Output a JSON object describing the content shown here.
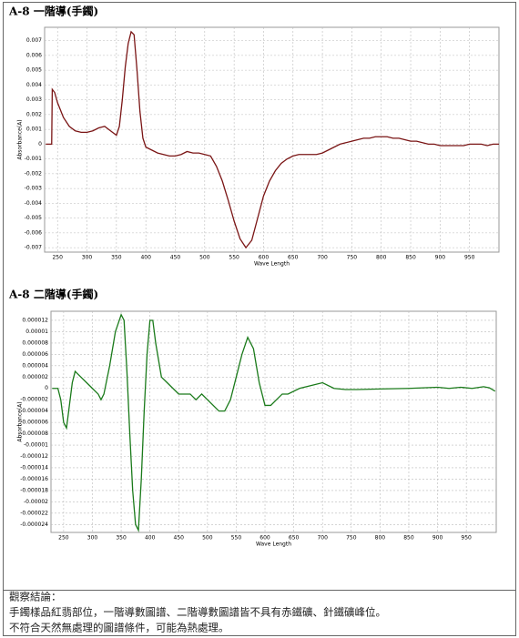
{
  "chart_data": [
    {
      "type": "line",
      "title": "A-8 一階導(手鐲)",
      "x_label": "Wave Length",
      "y_label": "Absorbance(A)",
      "xlim": [
        228,
        1000
      ],
      "xticks": [
        250,
        300,
        350,
        400,
        450,
        500,
        550,
        600,
        650,
        700,
        750,
        800,
        850,
        900,
        950
      ],
      "ylim": [
        -0.0073,
        0.0079
      ],
      "yticks": [
        0.007,
        0.006,
        0.005,
        0.004,
        0.003,
        0.002,
        0.001,
        0,
        -0.001,
        -0.002,
        -0.003,
        -0.004,
        -0.005,
        -0.006,
        -0.007
      ],
      "grid": true,
      "color": "#7a1515",
      "x": [
        230,
        240,
        241,
        245,
        250,
        260,
        270,
        280,
        290,
        300,
        310,
        320,
        330,
        340,
        350,
        355,
        360,
        365,
        370,
        375,
        380,
        385,
        390,
        395,
        400,
        410,
        420,
        430,
        440,
        450,
        460,
        470,
        480,
        490,
        500,
        510,
        520,
        530,
        540,
        550,
        560,
        570,
        580,
        590,
        600,
        610,
        620,
        630,
        640,
        650,
        660,
        670,
        680,
        690,
        700,
        710,
        720,
        730,
        740,
        750,
        760,
        770,
        780,
        790,
        800,
        810,
        820,
        830,
        840,
        850,
        860,
        870,
        880,
        890,
        900,
        910,
        920,
        930,
        940,
        950,
        960,
        970,
        980,
        990,
        1000
      ],
      "values": [
        0,
        0,
        0.0037,
        0.0035,
        0.0028,
        0.0018,
        0.0012,
        0.0009,
        0.0008,
        0.0008,
        0.0009,
        0.0011,
        0.0012,
        0.0009,
        0.0006,
        0.0012,
        0.003,
        0.0052,
        0.0068,
        0.0076,
        0.0074,
        0.005,
        0.0022,
        0.0004,
        -0.0002,
        -0.0004,
        -0.0006,
        -0.0007,
        -0.0008,
        -0.0008,
        -0.0007,
        -0.0005,
        -0.0006,
        -0.0006,
        -0.0007,
        -0.0008,
        -0.0015,
        -0.0025,
        -0.0038,
        -0.0052,
        -0.0064,
        -0.007,
        -0.0065,
        -0.005,
        -0.0035,
        -0.0025,
        -0.0018,
        -0.0013,
        -0.001,
        -0.0008,
        -0.0007,
        -0.0007,
        -0.0007,
        -0.0007,
        -0.0006,
        -0.0004,
        -0.0002,
        0,
        0.0001,
        0.0002,
        0.0003,
        0.0004,
        0.0004,
        0.0005,
        0.0005,
        0.0005,
        0.0004,
        0.0004,
        0.0003,
        0.0002,
        0.0002,
        0.0001,
        0,
        0,
        -0.0001,
        -0.0001,
        -0.0001,
        -0.0001,
        -0.0001,
        0,
        0,
        0,
        -0.0001,
        0,
        0
      ]
    },
    {
      "type": "line",
      "title": "A-8 二階導(手鐲)",
      "x_label": "Wave Length",
      "y_label": "Absorbance(A)",
      "xlim": [
        228,
        1002
      ],
      "xticks": [
        250,
        300,
        350,
        400,
        450,
        500,
        550,
        600,
        650,
        700,
        750,
        800,
        850,
        900,
        950
      ],
      "ylim": [
        -2.54e-05,
        1.36e-05
      ],
      "yticks": [
        1.2e-05,
        1e-05,
        8e-06,
        6e-06,
        4e-06,
        2e-06,
        0,
        -2e-06,
        -4e-06,
        -6e-06,
        -8e-06,
        -1e-05,
        -1.2e-05,
        -1.4e-05,
        -1.6e-05,
        -1.8e-05,
        -2e-05,
        -2.2e-05,
        -2.4e-05
      ],
      "grid": true,
      "color": "#1a7a1a",
      "x": [
        230,
        240,
        245,
        250,
        255,
        260,
        265,
        270,
        280,
        290,
        300,
        310,
        315,
        320,
        330,
        340,
        350,
        355,
        360,
        365,
        370,
        375,
        380,
        385,
        390,
        395,
        400,
        405,
        410,
        420,
        430,
        440,
        450,
        460,
        470,
        480,
        490,
        500,
        510,
        520,
        530,
        540,
        550,
        560,
        570,
        580,
        590,
        600,
        610,
        620,
        630,
        640,
        660,
        680,
        700,
        720,
        740,
        760,
        800,
        850,
        900,
        920,
        940,
        960,
        980,
        990,
        1000
      ],
      "values": [
        0,
        0,
        -2e-06,
        -6e-06,
        -7e-06,
        -3e-06,
        1e-06,
        3e-06,
        2e-06,
        1e-06,
        0,
        -1e-06,
        -2e-06,
        -1e-06,
        4e-06,
        1e-05,
        1.3e-05,
        1.2e-05,
        3e-06,
        -8e-06,
        -1.8e-05,
        -2.4e-05,
        -2.5e-05,
        -1.6e-05,
        -4e-06,
        6e-06,
        1.2e-05,
        1.2e-05,
        8e-06,
        2e-06,
        1e-06,
        0,
        -1e-06,
        -1e-06,
        -1e-06,
        -2e-06,
        -1e-06,
        -2e-06,
        -3e-06,
        -4e-06,
        -4e-06,
        -2e-06,
        2e-06,
        6e-06,
        9e-06,
        7e-06,
        1e-06,
        -3e-06,
        -3e-06,
        -2e-06,
        -1e-06,
        -1e-06,
        0,
        5e-07,
        1e-06,
        0,
        -2e-07,
        -2e-07,
        -1e-07,
        0,
        2e-07,
        0,
        2e-07,
        0,
        3e-07,
        1e-07,
        -5e-07
      ]
    }
  ],
  "conclusion": {
    "heading": "觀察結論：",
    "lines": [
      "手鐲樣品紅翡部位，一階導數圖譜、二階導數圖譜皆不具有赤鐵礦、針鐵礦峰位。",
      "不符合天然無處理的圖譜條件，可能為熱處理。"
    ]
  }
}
